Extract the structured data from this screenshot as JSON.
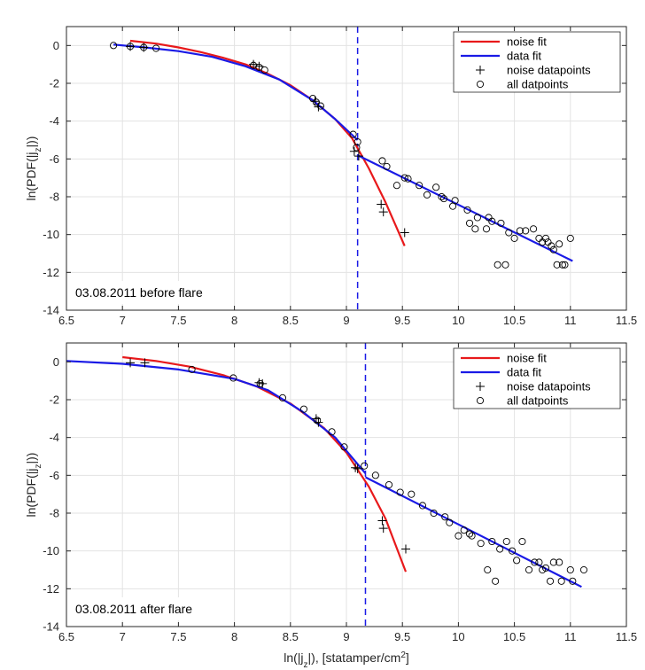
{
  "chart_data": [
    {
      "type": "line",
      "title": "03.08.2011 before flare",
      "xlabel_main": "ln(|j",
      "xlabel_sub": "z",
      "xlabel_rest": "|), [statamper/cm",
      "xlabel_sup": "2",
      "xlabel_close": "]",
      "show_xlabel": false,
      "ylabel_main": "ln(PDF(|j",
      "ylabel_sub": "z",
      "ylabel_rest": "|))",
      "xlim": [
        6.5,
        11.5
      ],
      "ylim": [
        -14,
        1
      ],
      "xticks": [
        6.5,
        7,
        7.5,
        8,
        8.5,
        9,
        9.5,
        10,
        10.5,
        11,
        11.5
      ],
      "xtick_labels": [
        "6.5",
        "7",
        "7.5",
        "8",
        "8.5",
        "9",
        "9.5",
        "10",
        "10.5",
        "11",
        "11.5"
      ],
      "yticks": [
        0,
        -2,
        -4,
        -6,
        -8,
        -10,
        -12,
        -14
      ],
      "ytick_labels": [
        "0",
        "-2",
        "-4",
        "-6",
        "-8",
        "-10",
        "-12",
        "-14"
      ],
      "grid": true,
      "vline_x": 9.1,
      "legend": {
        "position": "top-right",
        "entries": [
          "noise fit",
          "data fit",
          "noise datapoints",
          "all datpoints"
        ]
      },
      "colors": {
        "noise_fit": "#e8191b",
        "data_fit": "#1a1ae6",
        "vline": "#1a1ae6",
        "marker": "#000000"
      },
      "series": [
        {
          "name": "noise fit",
          "kind": "line",
          "x": [
            7.07,
            7.3,
            7.5,
            7.7,
            7.9,
            8.1,
            8.3,
            8.5,
            8.7,
            8.9,
            9.05,
            9.2,
            9.35,
            9.52
          ],
          "y": [
            0.25,
            0.1,
            -0.1,
            -0.35,
            -0.65,
            -1.0,
            -1.5,
            -2.1,
            -2.9,
            -3.9,
            -4.9,
            -6.5,
            -8.3,
            -10.6
          ]
        },
        {
          "name": "data fit",
          "kind": "line",
          "x": [
            6.92,
            7.2,
            7.5,
            7.8,
            8.1,
            8.4,
            8.7,
            8.9,
            9.1
          ],
          "y": [
            0.05,
            -0.1,
            -0.3,
            -0.6,
            -1.1,
            -1.8,
            -2.9,
            -3.9,
            -5.0
          ]
        },
        {
          "name": "data fit",
          "kind": "line",
          "x": [
            9.1,
            11.02
          ],
          "y": [
            -5.8,
            -11.4
          ]
        },
        {
          "name": "noise datapoints",
          "kind": "plus",
          "x": [
            7.07,
            7.19,
            8.17,
            8.22,
            8.72,
            8.75,
            9.07,
            9.11,
            9.31,
            9.33,
            9.52
          ],
          "y": [
            -0.05,
            -0.1,
            -1.0,
            -1.1,
            -2.95,
            -3.25,
            -5.6,
            -5.85,
            -8.4,
            -8.8,
            -9.9
          ]
        },
        {
          "name": "all datpoints",
          "kind": "circle",
          "x": [
            6.92,
            7.07,
            7.19,
            7.3,
            8.17,
            8.22,
            8.27,
            8.7,
            8.73,
            8.77,
            9.06,
            9.09,
            9.1,
            9.32,
            9.36,
            9.45,
            9.52,
            9.55,
            9.65,
            9.72,
            9.8,
            9.85,
            9.87,
            9.95,
            9.97,
            10.08,
            10.1,
            10.15,
            10.17,
            10.25,
            10.27,
            10.3,
            10.35,
            10.38,
            10.42,
            10.45,
            10.5,
            10.55,
            10.6,
            10.67,
            10.72,
            10.75,
            10.78,
            10.8,
            10.83,
            10.85,
            10.88,
            10.9,
            10.93,
            10.95,
            11.0
          ],
          "y": [
            0.0,
            -0.05,
            -0.1,
            -0.15,
            -1.05,
            -1.15,
            -1.3,
            -2.8,
            -3.0,
            -3.2,
            -4.7,
            -5.4,
            -5.1,
            -6.1,
            -6.4,
            -7.4,
            -7.0,
            -7.05,
            -7.4,
            -7.9,
            -7.5,
            -8.0,
            -8.1,
            -8.5,
            -8.2,
            -8.7,
            -9.4,
            -9.7,
            -9.1,
            -9.7,
            -9.1,
            -9.3,
            -11.6,
            -9.4,
            -11.6,
            -9.9,
            -10.2,
            -9.8,
            -9.8,
            -9.7,
            -10.2,
            -10.4,
            -10.2,
            -10.4,
            -10.6,
            -10.8,
            -11.6,
            -10.5,
            -11.6,
            -11.6,
            -10.2
          ]
        }
      ]
    },
    {
      "type": "line",
      "title": "03.08.2011 after flare",
      "xlabel_main": "ln(|j",
      "xlabel_sub": "z",
      "xlabel_rest": "|), [statamper/cm",
      "xlabel_sup": "2",
      "xlabel_close": "]",
      "show_xlabel": true,
      "ylabel_main": "ln(PDF(|j",
      "ylabel_sub": "z",
      "ylabel_rest": "|))",
      "xlim": [
        6.5,
        11.5
      ],
      "ylim": [
        -14,
        1
      ],
      "xticks": [
        6.5,
        7,
        7.5,
        8,
        8.5,
        9,
        9.5,
        10,
        10.5,
        11,
        11.5
      ],
      "xtick_labels": [
        "6.5",
        "7",
        "7.5",
        "8",
        "8.5",
        "9",
        "9.5",
        "10",
        "10.5",
        "11",
        "11.5"
      ],
      "yticks": [
        0,
        -2,
        -4,
        -6,
        -8,
        -10,
        -12,
        -14
      ],
      "ytick_labels": [
        "0",
        "-2",
        "-4",
        "-6",
        "-8",
        "-10",
        "-12",
        "-14"
      ],
      "grid": true,
      "vline_x": 9.17,
      "legend": {
        "position": "top-right",
        "entries": [
          "noise fit",
          "data fit",
          "noise datapoints",
          "all datpoints"
        ]
      },
      "colors": {
        "noise_fit": "#e8191b",
        "data_fit": "#1a1ae6",
        "vline": "#1a1ae6",
        "marker": "#000000"
      },
      "series": [
        {
          "name": "noise fit",
          "kind": "line",
          "x": [
            7.0,
            7.3,
            7.6,
            7.9,
            8.2,
            8.5,
            8.8,
            9.0,
            9.2,
            9.35,
            9.53
          ],
          "y": [
            0.25,
            0.05,
            -0.25,
            -0.7,
            -1.3,
            -2.2,
            -3.5,
            -4.8,
            -6.6,
            -8.3,
            -11.1
          ]
        },
        {
          "name": "data fit",
          "kind": "line",
          "x": [
            6.5,
            7.0,
            7.5,
            8.0,
            8.3,
            8.6,
            8.9,
            9.17
          ],
          "y": [
            0.05,
            -0.1,
            -0.4,
            -0.9,
            -1.5,
            -2.6,
            -4.0,
            -5.9
          ]
        },
        {
          "name": "data fit",
          "kind": "line",
          "x": [
            9.17,
            11.1
          ],
          "y": [
            -6.1,
            -11.9
          ]
        },
        {
          "name": "noise datapoints",
          "kind": "plus",
          "x": [
            7.07,
            7.2,
            8.22,
            8.25,
            8.73,
            8.75,
            9.08,
            9.1,
            9.32,
            9.33,
            9.53
          ],
          "y": [
            -0.05,
            -0.05,
            -1.1,
            -1.15,
            -3.0,
            -3.2,
            -5.6,
            -5.65,
            -8.4,
            -8.8,
            -9.9
          ]
        },
        {
          "name": "all datpoints",
          "kind": "circle",
          "x": [
            7.62,
            7.99,
            8.23,
            8.43,
            8.62,
            8.74,
            8.87,
            8.98,
            9.16,
            9.26,
            9.38,
            9.48,
            9.58,
            9.68,
            9.78,
            9.88,
            9.92,
            10.0,
            10.05,
            10.1,
            10.12,
            10.2,
            10.26,
            10.3,
            10.33,
            10.37,
            10.43,
            10.48,
            10.52,
            10.57,
            10.63,
            10.68,
            10.72,
            10.75,
            10.78,
            10.82,
            10.85,
            10.9,
            10.92,
            11.0,
            11.02,
            11.12
          ],
          "y": [
            -0.4,
            -0.85,
            -1.15,
            -1.9,
            -2.5,
            -3.1,
            -3.7,
            -4.5,
            -5.5,
            -6.0,
            -6.5,
            -6.9,
            -7.0,
            -7.6,
            -8.0,
            -8.2,
            -8.5,
            -9.2,
            -8.9,
            -9.1,
            -9.2,
            -9.6,
            -11.0,
            -9.5,
            -11.6,
            -9.9,
            -9.5,
            -10.0,
            -10.5,
            -9.5,
            -11.0,
            -10.6,
            -10.6,
            -11.0,
            -10.9,
            -11.6,
            -10.6,
            -10.6,
            -11.6,
            -11.0,
            -11.6,
            -11.0
          ]
        }
      ]
    }
  ]
}
